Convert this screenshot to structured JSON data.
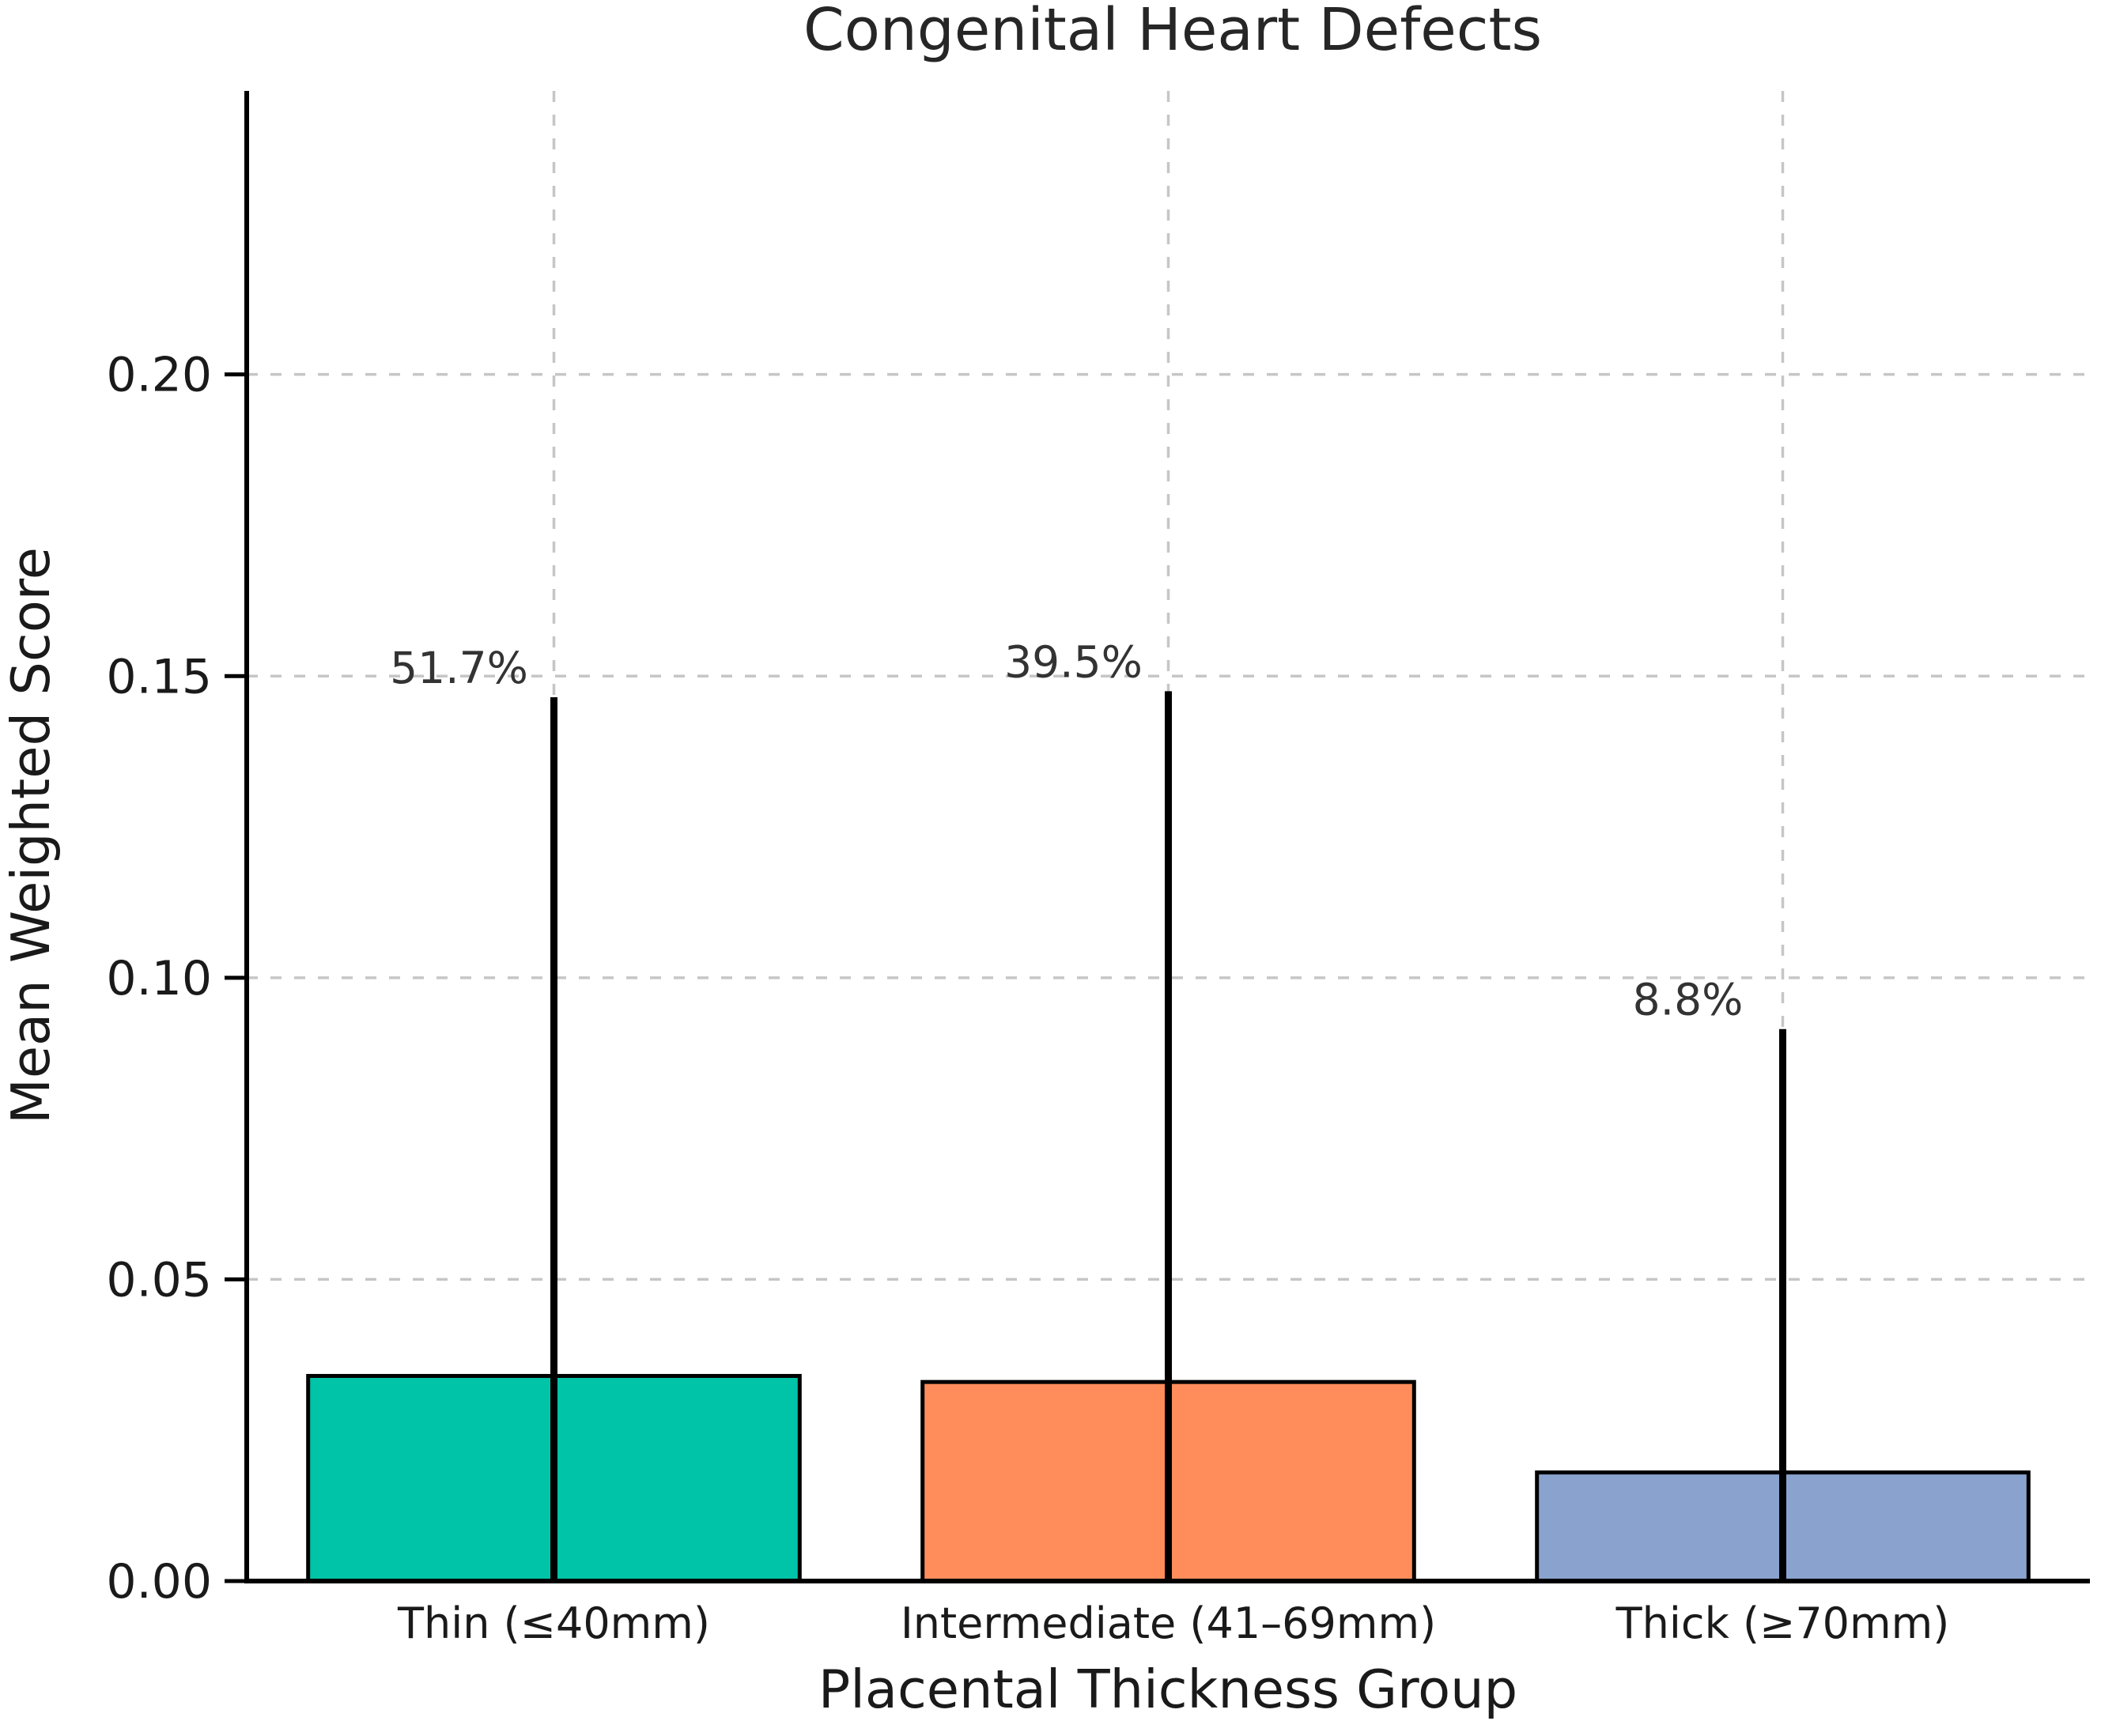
{
  "figure": {
    "background_color": "#ffffff"
  },
  "chart_data": {
    "type": "bar",
    "title": "Congenital Heart Defects",
    "xlabel": "Placental Thickness Group",
    "ylabel": "Mean Weighted Score",
    "categories": [
      "Thin (≤40mm)",
      "Intermediate (41–69mm)",
      "Thick (≥70mm)"
    ],
    "values": [
      0.034,
      0.033,
      0.018
    ],
    "error_bar_top_values": [
      0.1465,
      0.1475,
      0.0915
    ],
    "error_bar_bottom_values": [
      0.0,
      0.0,
      0.0
    ],
    "bar_labels": [
      "51.7%",
      "39.5%",
      "8.8%"
    ],
    "bar_colors": [
      "#00c4a7",
      "#ff8d5c",
      "#8aa3ce"
    ],
    "bar_edge_color": "#000000",
    "error_bar_color": "#000000",
    "yticks": [
      0.0,
      0.05,
      0.1,
      0.15,
      0.2
    ],
    "ytick_labels": [
      "0.00",
      "0.05",
      "0.10",
      "0.15",
      "0.20"
    ],
    "ylim": [
      0,
      0.247
    ],
    "grid": true,
    "grid_color": "#c6c6c6",
    "grid_style": "dashed",
    "axis_color": "#000000",
    "legend_position": "none"
  }
}
